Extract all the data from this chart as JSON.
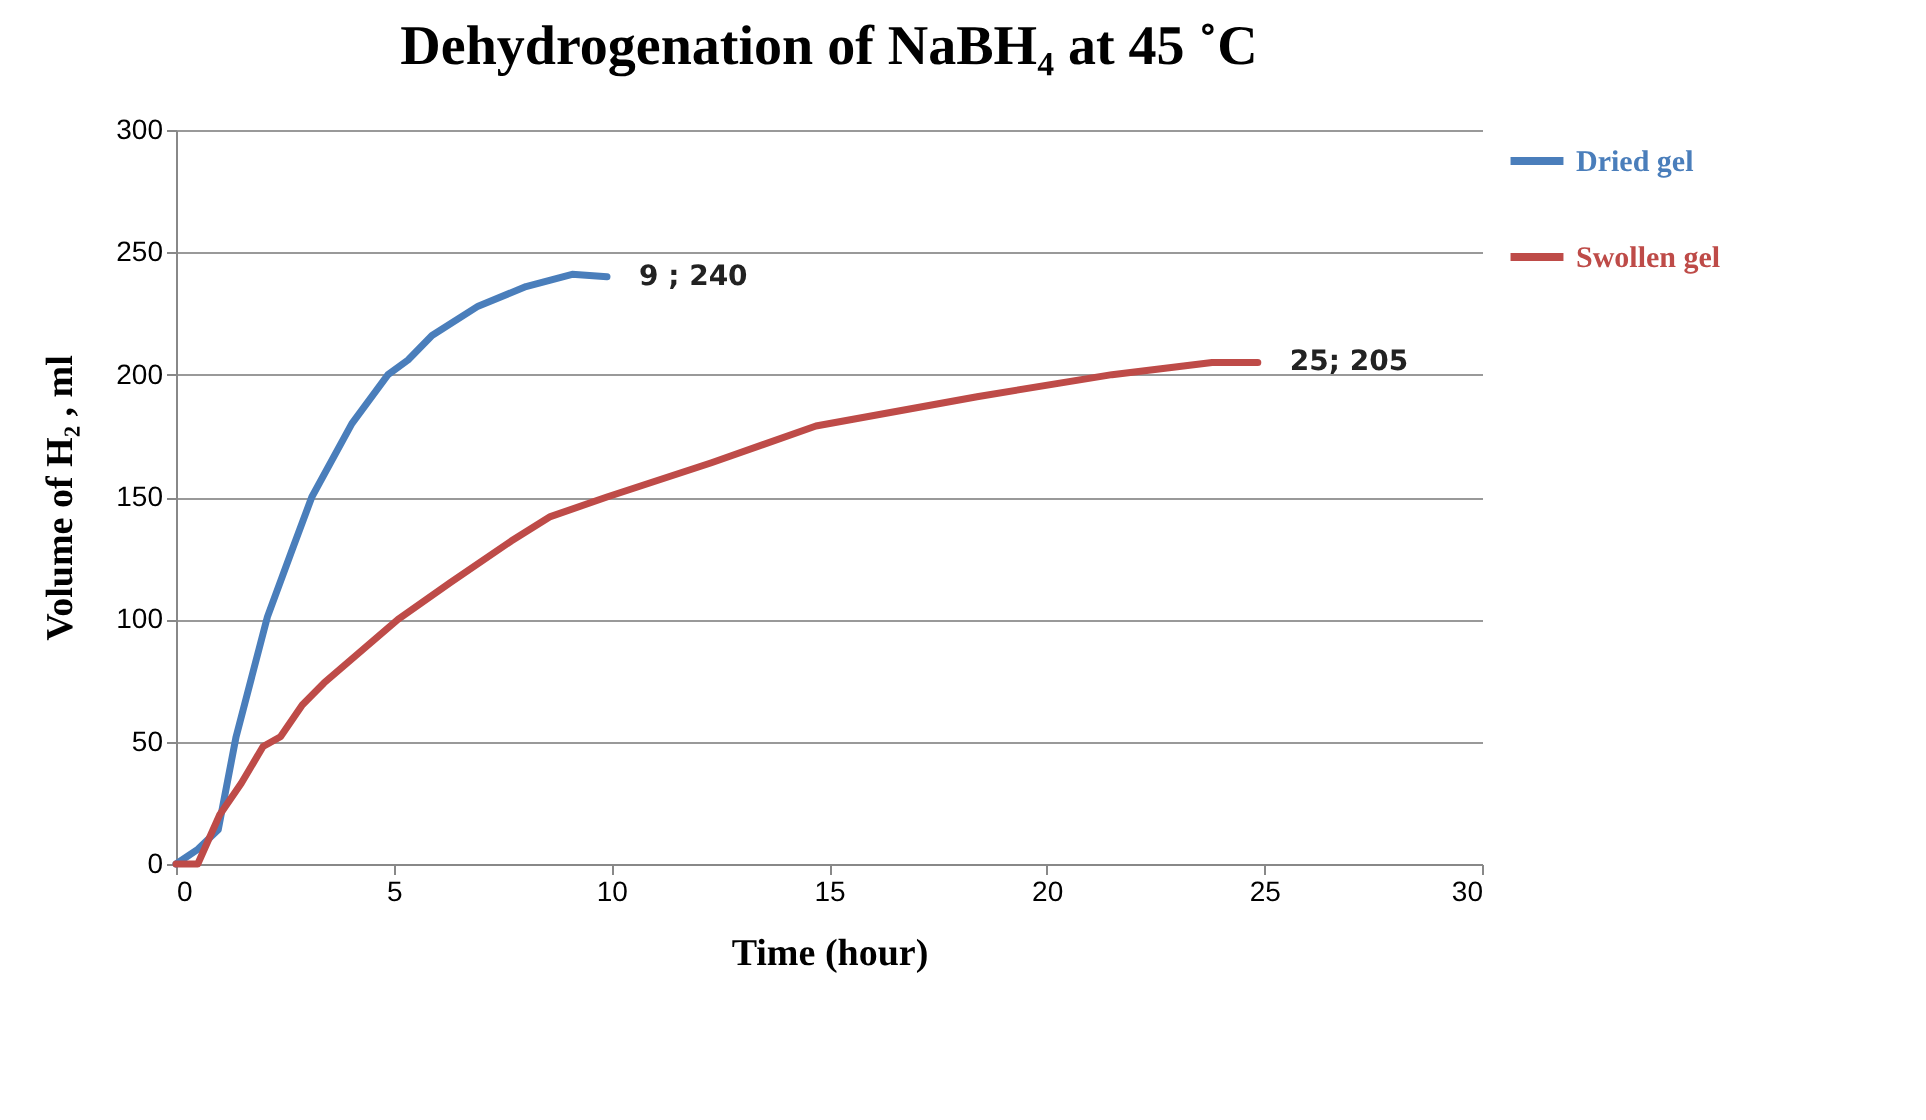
{
  "chart_data": {
    "type": "line",
    "title": "Dehydrogenation  of NaBH₄ at 45 ˚C",
    "xlabel": "Time (hour)",
    "ylabel": "Volume of H₂ , ml",
    "xlim": [
      0,
      30
    ],
    "xticks": [
      0,
      5,
      10,
      15,
      20,
      25,
      30
    ],
    "ylim": [
      0,
      300
    ],
    "yticks": [
      0,
      50,
      100,
      150,
      200,
      250,
      300
    ],
    "grid": "y",
    "legend": "right",
    "line_style": "solid",
    "series": [
      {
        "name": "Dried gel",
        "color": "#4a7ebb",
        "x": [
          0,
          0.5,
          0.97,
          1.38,
          2.1,
          2.66,
          3.12,
          4.04,
          4.87,
          5.33,
          5.88,
          6.94,
          8.04,
          9.1,
          9.9
        ],
        "values": [
          0,
          6,
          14,
          52,
          101,
          128,
          150,
          180,
          200,
          206,
          216,
          228,
          236,
          241,
          240
        ]
      },
      {
        "name": "Swollen gel",
        "color": "#be4b48",
        "x": [
          0,
          0.5,
          1,
          1.5,
          2,
          2.4,
          2.9,
          3.4,
          5.1,
          6.3,
          7.7,
          8.6,
          9.9,
          12.3,
          14.7,
          18.4,
          21.5,
          23.8,
          24.85
        ],
        "values": [
          0,
          0,
          20,
          33,
          48,
          52,
          65,
          74,
          100,
          115,
          132,
          142,
          150,
          164,
          179,
          191,
          200,
          205,
          205
        ]
      }
    ],
    "annotations": [
      {
        "text": "9 ; 240",
        "x": 9.9,
        "y": 240
      },
      {
        "text": "25; 205",
        "x": 24.85,
        "y": 205
      }
    ]
  }
}
